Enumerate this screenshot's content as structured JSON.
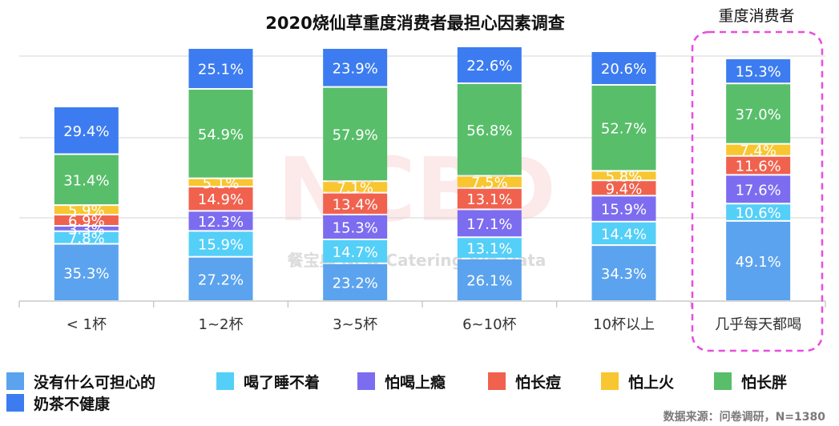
{
  "chart_data": {
    "type": "bar",
    "stacked": true,
    "title": "2020烧仙草重度消费者最担心因素调查",
    "highlight_label": "重度消费者",
    "categories": [
      "< 1杯",
      "1~2杯",
      "3~5杯",
      "6~10杯",
      "10杯以上",
      "几乎每天都喝"
    ],
    "series": [
      {
        "name": "没有什么可担心的",
        "color": "#5BA3EE",
        "values": [
          35.3,
          27.2,
          23.2,
          26.1,
          34.3,
          49.1
        ]
      },
      {
        "name": "喝了睡不着",
        "color": "#54CFF8",
        "values": [
          7.8,
          15.9,
          14.7,
          13.1,
          14.4,
          10.6
        ]
      },
      {
        "name": "怕喝上瘾",
        "color": "#7C6CF0",
        "values": [
          3.3,
          12.3,
          15.3,
          17.1,
          15.9,
          17.6
        ]
      },
      {
        "name": "怕长痘",
        "color": "#F0624E",
        "values": [
          6.9,
          14.9,
          13.4,
          13.1,
          9.4,
          11.6
        ]
      },
      {
        "name": "怕上火",
        "color": "#F8C630",
        "values": [
          5.9,
          5.1,
          7.1,
          7.5,
          5.8,
          7.4
        ]
      },
      {
        "name": "怕长胖",
        "color": "#58BE6A",
        "values": [
          31.4,
          54.9,
          57.9,
          56.8,
          52.7,
          37.0
        ]
      },
      {
        "name": "奶茶不健康",
        "color": "#3C7CF0",
        "values": [
          29.4,
          25.1,
          23.9,
          22.6,
          20.6,
          15.3
        ]
      }
    ],
    "data_labels": [
      [
        "35.3%",
        "7.8%",
        "3.3%",
        "6.9%",
        "5.9%",
        "31.4%",
        "29.4%"
      ],
      [
        "27.2%",
        "15.9%",
        "12.3%",
        "14.9%",
        "5.1%",
        "54.9%",
        "25.1%"
      ],
      [
        "23.2%",
        "14.7%",
        "15.3%",
        "13.4%",
        "7.1%",
        "57.9%",
        "23.9%"
      ],
      [
        "26.1%",
        "13.1%",
        "17.1%",
        "13.1%",
        "7.5%",
        "56.8%",
        "22.6%"
      ],
      [
        "34.3%",
        "14.4%",
        "15.9%",
        "9.4%",
        "5.8%",
        "52.7%",
        "20.6%"
      ],
      [
        "49.1%",
        "10.6%",
        "17.6%",
        "11.6%",
        "7.4%",
        "37.0%",
        "15.3%"
      ]
    ],
    "grid": true,
    "legend_position": "bottom",
    "source": "数据来源：问卷调研，N=1380",
    "watermark": "NCBD 餐宝典 New Catering Big Data"
  }
}
